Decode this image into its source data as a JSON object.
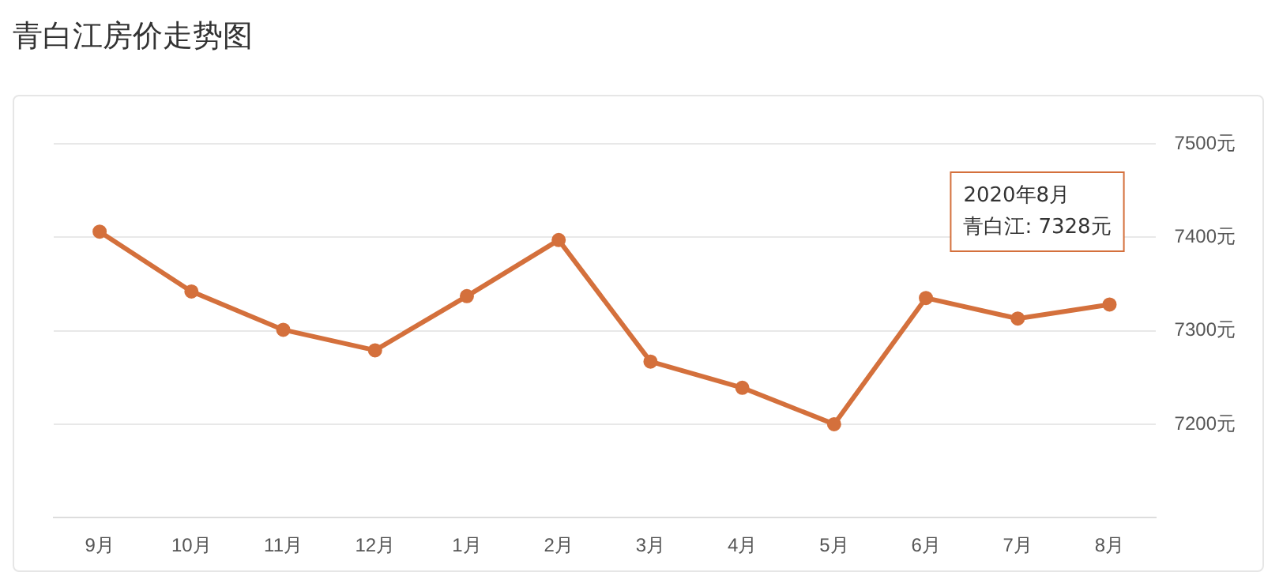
{
  "chart_data": {
    "type": "line",
    "title": "青白江房价走势图",
    "categories": [
      "9月",
      "10月",
      "11月",
      "12月",
      "1月",
      "2月",
      "3月",
      "4月",
      "5月",
      "6月",
      "7月",
      "8月"
    ],
    "series": [
      {
        "color": "#d4703c",
        "values": [
          7406,
          7342,
          7301,
          7279,
          7337,
          7397,
          7267,
          7239,
          7200,
          7335,
          7313,
          7328
        ]
      }
    ],
    "annotations": [
      "2020年8月",
      "青白江: 7328元"
    ],
    "ylim": [
      7100,
      7500
    ],
    "yticks": [
      {
        "value": 7200,
        "label": "7200元"
      },
      {
        "value": 7300,
        "label": "7300元"
      },
      {
        "value": 7400,
        "label": "7400元"
      },
      {
        "value": 7500,
        "label": "7500元"
      }
    ],
    "grid": "y",
    "legend": false,
    "marker": "circle",
    "line_style": "solid"
  }
}
